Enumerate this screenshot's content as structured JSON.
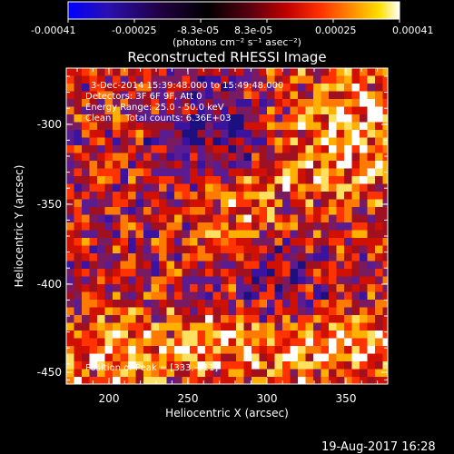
{
  "colorbar": {
    "tick_labels": [
      "-0.00041",
      "-0.00025",
      "-8.3e-05",
      "8.3e-05",
      "0.00025",
      "0.00041"
    ],
    "units": "(photons cm⁻² s⁻¹ asec⁻²)",
    "colors": [
      "#0000ff",
      "#2a0a8c",
      "#1a0030",
      "#000000",
      "#5a0010",
      "#b00000",
      "#ff2200",
      "#ff7700",
      "#ffbb00",
      "#ffffff"
    ]
  },
  "plot": {
    "title": "Reconstructed RHESSI Image",
    "xlabel": "Heliocentric X (arcsec)",
    "ylabel": "Heliocentric Y (arcsec)",
    "x_ticks": [
      "200",
      "250",
      "300",
      "350"
    ],
    "y_ticks": [
      "-300",
      "-350",
      "-400",
      "-450"
    ],
    "xlim": [
      178,
      370
    ],
    "ylim": [
      -465,
      -271
    ],
    "annotations": {
      "time": "3-Dec-2014 15:39:48.000 to 15:49:48.000",
      "detectors": "Detectors: 3F 6F 9F, Att 0",
      "energy": "Energy Range: 25.0 - 50.0 keV",
      "clean": "Clean     Total counts: 6.36E+03",
      "peak": "Position of Peak = [333,-311]"
    }
  },
  "footer_date": "19-Aug-2017 16:28"
}
